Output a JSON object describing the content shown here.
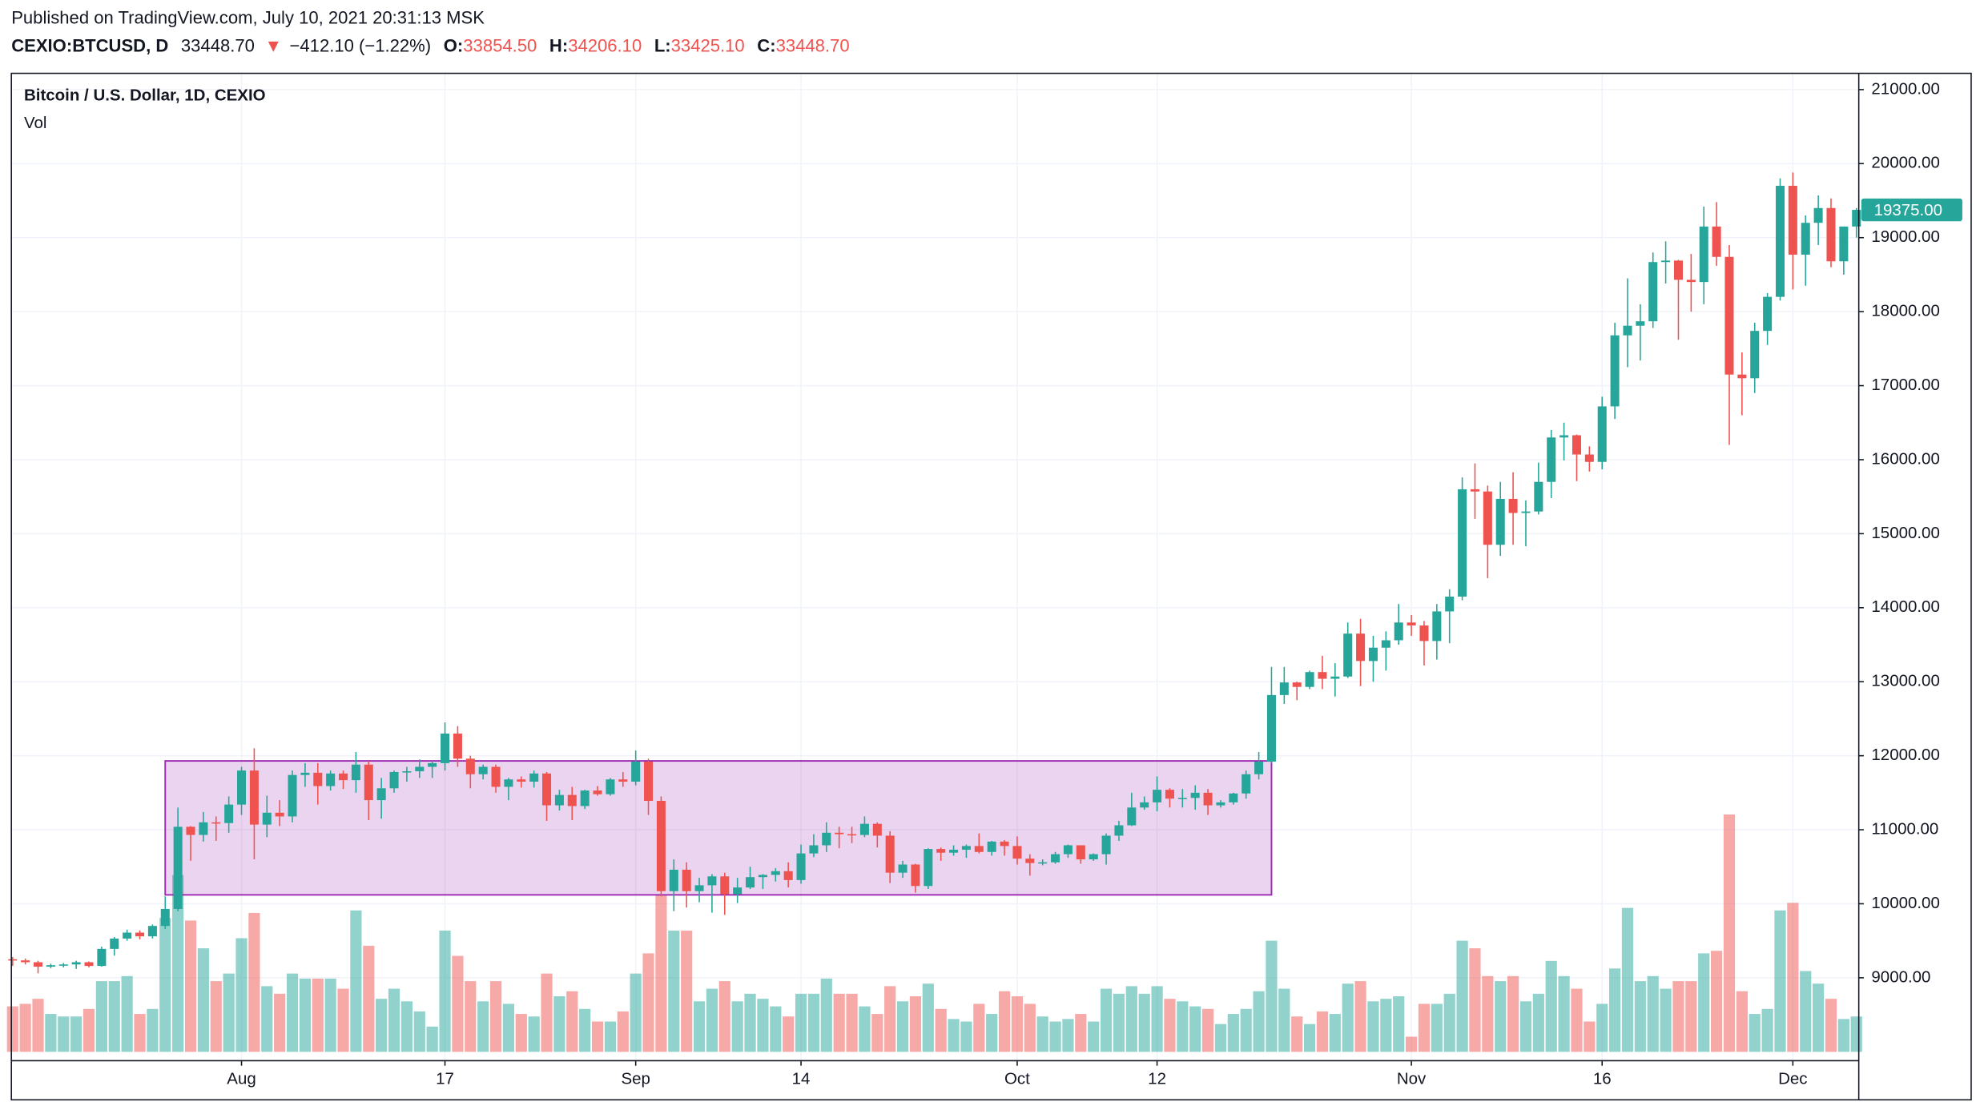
{
  "header": {
    "published": "Published on TradingView.com, July 10, 2021 20:31:13 MSK",
    "symbol": "CEXIO:BTCUSD, D",
    "last": "33448.70",
    "arrow": "▼",
    "change": "−412.10 (−1.22%)",
    "o_label": "O:",
    "o": "33854.50",
    "h_label": "H:",
    "h": "34206.10",
    "l_label": "L:",
    "l": "33425.10",
    "c_label": "C:",
    "c": "33448.70"
  },
  "chart_data": {
    "type": "candlestick",
    "title": "Bitcoin / U.S. Dollar, 1D, CEXIO",
    "volume_label": "Vol",
    "up_color": "#26a69a",
    "down_color": "#ef5350",
    "grid": true,
    "ylim": [
      7880,
      21220
    ],
    "yticks": [
      {
        "value": 9000,
        "label": "9000.00"
      },
      {
        "value": 10000,
        "label": "10000.00"
      },
      {
        "value": 11000,
        "label": "11000.00"
      },
      {
        "value": 12000,
        "label": "12000.00"
      },
      {
        "value": 13000,
        "label": "13000.00"
      },
      {
        "value": 14000,
        "label": "14000.00"
      },
      {
        "value": 15000,
        "label": "15000.00"
      },
      {
        "value": 16000,
        "label": "16000.00"
      },
      {
        "value": 17000,
        "label": "17000.00"
      },
      {
        "value": 18000,
        "label": "18000.00"
      },
      {
        "value": 19000,
        "label": "19000.00"
      },
      {
        "value": 20000,
        "label": "20000.00"
      },
      {
        "value": 21000,
        "label": "21000.00"
      }
    ],
    "xticks": [
      {
        "value": "Aug 1",
        "label": "Aug"
      },
      {
        "value": "Aug 17",
        "label": "17"
      },
      {
        "value": "Sep 1",
        "label": "Sep"
      },
      {
        "value": "Sep 14",
        "label": "14"
      },
      {
        "value": "Oct 1",
        "label": "Oct"
      },
      {
        "value": "Oct 12",
        "label": "12"
      },
      {
        "value": "Nov 1",
        "label": "Nov"
      },
      {
        "value": "Nov 16",
        "label": "16"
      },
      {
        "value": "Dec 1",
        "label": "Dec"
      }
    ],
    "last_price": {
      "value": 19375,
      "label": "19375.00"
    },
    "rectangle": {
      "x0": "Jul 26",
      "x1": "Oct 21",
      "y0": 10120,
      "y1": 11930,
      "color": "#9c27b0"
    },
    "x": [
      "Jul 14",
      "Jul 15",
      "Jul 16",
      "Jul 17",
      "Jul 18",
      "Jul 19",
      "Jul 20",
      "Jul 21",
      "Jul 22",
      "Jul 23",
      "Jul 24",
      "Jul 25",
      "Jul 26",
      "Jul 27",
      "Jul 28",
      "Jul 29",
      "Jul 30",
      "Jul 31",
      "Aug 1",
      "Aug 2",
      "Aug 3",
      "Aug 4",
      "Aug 5",
      "Aug 6",
      "Aug 7",
      "Aug 8",
      "Aug 9",
      "Aug 10",
      "Aug 11",
      "Aug 12",
      "Aug 13",
      "Aug 14",
      "Aug 15",
      "Aug 16",
      "Aug 17",
      "Aug 18",
      "Aug 19",
      "Aug 20",
      "Aug 21",
      "Aug 22",
      "Aug 23",
      "Aug 24",
      "Aug 25",
      "Aug 26",
      "Aug 27",
      "Aug 28",
      "Aug 29",
      "Aug 30",
      "Aug 31",
      "Sep 1",
      "Sep 2",
      "Sep 3",
      "Sep 4",
      "Sep 5",
      "Sep 6",
      "Sep 7",
      "Sep 8",
      "Sep 9",
      "Sep 10",
      "Sep 11",
      "Sep 12",
      "Sep 13",
      "Sep 14",
      "Sep 15",
      "Sep 16",
      "Sep 17",
      "Sep 18",
      "Sep 19",
      "Sep 20",
      "Sep 21",
      "Sep 22",
      "Sep 23",
      "Sep 24",
      "Sep 25",
      "Sep 26",
      "Sep 27",
      "Sep 28",
      "Sep 29",
      "Sep 30",
      "Oct 1",
      "Oct 2",
      "Oct 3",
      "Oct 4",
      "Oct 5",
      "Oct 6",
      "Oct 7",
      "Oct 8",
      "Oct 9",
      "Oct 10",
      "Oct 11",
      "Oct 12",
      "Oct 13",
      "Oct 14",
      "Oct 15",
      "Oct 16",
      "Oct 17",
      "Oct 18",
      "Oct 19",
      "Oct 20",
      "Oct 21",
      "Oct 22",
      "Oct 23",
      "Oct 24",
      "Oct 25",
      "Oct 26",
      "Oct 27",
      "Oct 28",
      "Oct 29",
      "Oct 30",
      "Oct 31",
      "Nov 1",
      "Nov 2",
      "Nov 3",
      "Nov 4",
      "Nov 5",
      "Nov 6",
      "Nov 7",
      "Nov 8",
      "Nov 9",
      "Nov 10",
      "Nov 11",
      "Nov 12",
      "Nov 13",
      "Nov 14",
      "Nov 15",
      "Nov 16",
      "Nov 17",
      "Nov 18",
      "Nov 19",
      "Nov 20",
      "Nov 21",
      "Nov 22",
      "Nov 23",
      "Nov 24",
      "Nov 25",
      "Nov 26",
      "Nov 27",
      "Nov 28",
      "Nov 29",
      "Nov 30",
      "Dec 1",
      "Dec 2",
      "Dec 3",
      "Dec 4",
      "Dec 5",
      "Dec 6"
    ],
    "ohlc": [
      [
        9250,
        9280,
        9160,
        9235
      ],
      [
        9235,
        9260,
        9180,
        9210
      ],
      [
        9210,
        9230,
        9060,
        9150
      ],
      [
        9150,
        9190,
        9130,
        9170
      ],
      [
        9170,
        9200,
        9140,
        9180
      ],
      [
        9180,
        9230,
        9120,
        9210
      ],
      [
        9210,
        9220,
        9140,
        9160
      ],
      [
        9160,
        9420,
        9150,
        9390
      ],
      [
        9390,
        9550,
        9300,
        9530
      ],
      [
        9530,
        9650,
        9500,
        9610
      ],
      [
        9610,
        9640,
        9520,
        9560
      ],
      [
        9560,
        9720,
        9530,
        9700
      ],
      [
        9700,
        10100,
        9660,
        9930
      ],
      [
        9930,
        11300,
        9900,
        11040
      ],
      [
        11040,
        11050,
        10580,
        10930
      ],
      [
        10930,
        11240,
        10840,
        11100
      ],
      [
        11100,
        11180,
        10850,
        11090
      ],
      [
        11090,
        11450,
        10960,
        11340
      ],
      [
        11340,
        11850,
        11200,
        11800
      ],
      [
        11800,
        12100,
        10600,
        11070
      ],
      [
        11070,
        11460,
        10900,
        11230
      ],
      [
        11230,
        11400,
        11050,
        11180
      ],
      [
        11180,
        11800,
        11100,
        11740
      ],
      [
        11740,
        11900,
        11580,
        11770
      ],
      [
        11770,
        11900,
        11340,
        11590
      ],
      [
        11590,
        11800,
        11530,
        11760
      ],
      [
        11760,
        11800,
        11550,
        11670
      ],
      [
        11670,
        12050,
        11500,
        11880
      ],
      [
        11880,
        11930,
        11130,
        11400
      ],
      [
        11400,
        11700,
        11150,
        11560
      ],
      [
        11560,
        11800,
        11500,
        11780
      ],
      [
        11780,
        11850,
        11650,
        11790
      ],
      [
        11790,
        11950,
        11700,
        11850
      ],
      [
        11850,
        11930,
        11700,
        11900
      ],
      [
        11900,
        12450,
        11800,
        12300
      ],
      [
        12300,
        12400,
        11850,
        11960
      ],
      [
        11960,
        12000,
        11560,
        11750
      ],
      [
        11750,
        11880,
        11680,
        11850
      ],
      [
        11850,
        11880,
        11500,
        11580
      ],
      [
        11580,
        11700,
        11400,
        11680
      ],
      [
        11680,
        11720,
        11570,
        11650
      ],
      [
        11650,
        11800,
        11570,
        11760
      ],
      [
        11760,
        11780,
        11120,
        11330
      ],
      [
        11330,
        11540,
        11260,
        11470
      ],
      [
        11470,
        11580,
        11130,
        11320
      ],
      [
        11320,
        11540,
        11280,
        11530
      ],
      [
        11530,
        11590,
        11460,
        11480
      ],
      [
        11480,
        11700,
        11460,
        11680
      ],
      [
        11680,
        11780,
        11580,
        11650
      ],
      [
        11650,
        12070,
        11600,
        11920
      ],
      [
        11920,
        11960,
        11200,
        11390
      ],
      [
        11390,
        11450,
        10100,
        10170
      ],
      [
        10170,
        10600,
        9900,
        10460
      ],
      [
        10460,
        10560,
        9950,
        10170
      ],
      [
        10170,
        10350,
        10020,
        10250
      ],
      [
        10250,
        10400,
        9880,
        10370
      ],
      [
        10370,
        10420,
        9850,
        10130
      ],
      [
        10130,
        10350,
        10010,
        10220
      ],
      [
        10220,
        10500,
        10200,
        10360
      ],
      [
        10360,
        10400,
        10200,
        10390
      ],
      [
        10390,
        10480,
        10300,
        10440
      ],
      [
        10440,
        10560,
        10220,
        10320
      ],
      [
        10320,
        10800,
        10270,
        10680
      ],
      [
        10680,
        10940,
        10630,
        10790
      ],
      [
        10790,
        11100,
        10700,
        10960
      ],
      [
        10960,
        11040,
        10750,
        10940
      ],
      [
        10940,
        11040,
        10820,
        10930
      ],
      [
        10930,
        11180,
        10900,
        11080
      ],
      [
        11080,
        11100,
        10760,
        10920
      ],
      [
        10920,
        10980,
        10280,
        10420
      ],
      [
        10420,
        10580,
        10350,
        10530
      ],
      [
        10530,
        10540,
        10150,
        10240
      ],
      [
        10240,
        10750,
        10200,
        10740
      ],
      [
        10740,
        10760,
        10580,
        10690
      ],
      [
        10690,
        10790,
        10650,
        10730
      ],
      [
        10730,
        10800,
        10620,
        10780
      ],
      [
        10780,
        10950,
        10680,
        10700
      ],
      [
        10700,
        10850,
        10650,
        10840
      ],
      [
        10840,
        10860,
        10650,
        10780
      ],
      [
        10780,
        10910,
        10530,
        10610
      ],
      [
        10610,
        10670,
        10380,
        10550
      ],
      [
        10550,
        10600,
        10520,
        10560
      ],
      [
        10560,
        10700,
        10540,
        10670
      ],
      [
        10670,
        10800,
        10620,
        10790
      ],
      [
        10790,
        10790,
        10540,
        10600
      ],
      [
        10600,
        10680,
        10580,
        10670
      ],
      [
        10670,
        10950,
        10530,
        10920
      ],
      [
        10920,
        11120,
        10850,
        11060
      ],
      [
        11060,
        11500,
        11050,
        11300
      ],
      [
        11300,
        11450,
        11270,
        11370
      ],
      [
        11370,
        11720,
        11250,
        11540
      ],
      [
        11540,
        11560,
        11300,
        11420
      ],
      [
        11420,
        11550,
        11300,
        11430
      ],
      [
        11430,
        11600,
        11270,
        11500
      ],
      [
        11500,
        11550,
        11200,
        11330
      ],
      [
        11330,
        11400,
        11300,
        11370
      ],
      [
        11370,
        11500,
        11340,
        11490
      ],
      [
        11490,
        11800,
        11420,
        11750
      ],
      [
        11750,
        12050,
        11680,
        11920
      ],
      [
        11920,
        13200,
        11900,
        12820
      ],
      [
        12820,
        13200,
        12700,
        12990
      ],
      [
        12990,
        13000,
        12750,
        12930
      ],
      [
        12930,
        13150,
        12900,
        13130
      ],
      [
        13130,
        13350,
        12900,
        13040
      ],
      [
        13040,
        13250,
        12800,
        13070
      ],
      [
        13070,
        13800,
        13050,
        13650
      ],
      [
        13650,
        13850,
        12940,
        13280
      ],
      [
        13280,
        13620,
        13000,
        13460
      ],
      [
        13460,
        13680,
        13150,
        13560
      ],
      [
        13560,
        14050,
        13500,
        13800
      ],
      [
        13800,
        13900,
        13620,
        13760
      ],
      [
        13760,
        13820,
        13220,
        13550
      ],
      [
        13550,
        14050,
        13300,
        13950
      ],
      [
        13950,
        14250,
        13520,
        14150
      ],
      [
        14150,
        15760,
        14100,
        15600
      ],
      [
        15600,
        15950,
        15200,
        15570
      ],
      [
        15570,
        15650,
        14400,
        14850
      ],
      [
        14850,
        15700,
        14700,
        15470
      ],
      [
        15470,
        15830,
        14850,
        15280
      ],
      [
        15280,
        15450,
        14830,
        15300
      ],
      [
        15300,
        15960,
        15260,
        15700
      ],
      [
        15700,
        16400,
        15480,
        16300
      ],
      [
        16300,
        16500,
        15990,
        16330
      ],
      [
        16330,
        16340,
        15710,
        16070
      ],
      [
        16070,
        16180,
        15840,
        15970
      ],
      [
        15970,
        16850,
        15870,
        16720
      ],
      [
        16720,
        17850,
        16550,
        17680
      ],
      [
        17680,
        18450,
        17250,
        17810
      ],
      [
        17810,
        18100,
        17340,
        17870
      ],
      [
        17870,
        18800,
        17780,
        18670
      ],
      [
        18670,
        18950,
        18380,
        18690
      ],
      [
        18690,
        18700,
        17620,
        18430
      ],
      [
        18430,
        18780,
        18000,
        18400
      ],
      [
        18400,
        19420,
        18100,
        19150
      ],
      [
        19150,
        19480,
        18620,
        18740
      ],
      [
        18740,
        18900,
        16200,
        17150
      ],
      [
        17150,
        17450,
        16600,
        17100
      ],
      [
        17100,
        17850,
        16900,
        17740
      ],
      [
        17740,
        18250,
        17550,
        18200
      ],
      [
        18200,
        19800,
        18150,
        19700
      ],
      [
        19700,
        19880,
        18300,
        18770
      ],
      [
        18770,
        19300,
        18350,
        19200
      ],
      [
        19200,
        19570,
        18900,
        19400
      ],
      [
        19400,
        19530,
        18600,
        18680
      ],
      [
        18680,
        19150,
        18500,
        19150
      ],
      [
        19150,
        19400,
        19000,
        19375
      ]
    ],
    "volume": [
      36,
      38,
      42,
      30,
      28,
      28,
      34,
      56,
      56,
      60,
      30,
      34,
      106,
      140,
      104,
      82,
      56,
      62,
      90,
      110,
      52,
      46,
      62,
      58,
      58,
      58,
      50,
      112,
      84,
      42,
      50,
      40,
      32,
      20,
      96,
      76,
      56,
      40,
      56,
      38,
      30,
      28,
      62,
      44,
      48,
      34,
      24,
      24,
      32,
      62,
      78,
      124,
      96,
      96,
      40,
      50,
      56,
      40,
      46,
      42,
      36,
      28,
      46,
      46,
      58,
      46,
      46,
      36,
      30,
      52,
      40,
      44,
      54,
      34,
      26,
      24,
      38,
      30,
      48,
      44,
      38,
      28,
      24,
      26,
      30,
      24,
      50,
      46,
      52,
      46,
      52,
      42,
      40,
      36,
      34,
      22,
      30,
      34,
      48,
      88,
      50,
      28,
      22,
      32,
      30,
      54,
      56,
      40,
      42,
      44,
      12,
      38,
      38,
      46,
      88,
      82,
      60,
      56,
      60,
      40,
      46,
      72,
      60,
      50,
      24,
      38,
      66,
      114,
      56,
      60,
      50,
      56,
      56,
      78,
      80,
      188,
      48,
      30,
      34,
      112,
      118,
      64,
      54,
      42,
      26,
      28
    ]
  }
}
